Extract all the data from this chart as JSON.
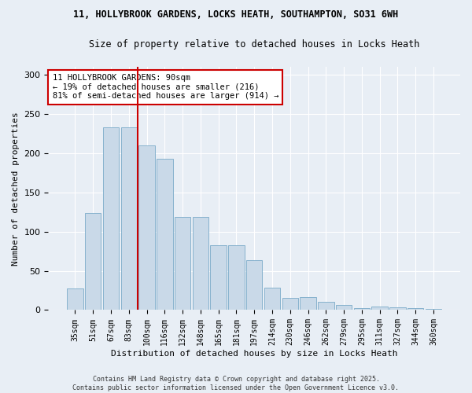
{
  "title1": "11, HOLLYBROOK GARDENS, LOCKS HEATH, SOUTHAMPTON, SO31 6WH",
  "title2": "Size of property relative to detached houses in Locks Heath",
  "xlabel": "Distribution of detached houses by size in Locks Heath",
  "ylabel": "Number of detached properties",
  "bar_labels": [
    "35sqm",
    "51sqm",
    "67sqm",
    "83sqm",
    "100sqm",
    "116sqm",
    "132sqm",
    "148sqm",
    "165sqm",
    "181sqm",
    "197sqm",
    "214sqm",
    "230sqm",
    "246sqm",
    "262sqm",
    "279sqm",
    "295sqm",
    "311sqm",
    "327sqm",
    "344sqm",
    "360sqm"
  ],
  "bar_values": [
    28,
    124,
    233,
    233,
    210,
    193,
    119,
    119,
    83,
    83,
    64,
    29,
    15,
    17,
    10,
    6,
    2,
    4,
    3,
    2,
    1
  ],
  "bar_color": "#c9d9e8",
  "bar_edge_color": "#7aaac8",
  "vline_x_index": 3,
  "vline_color": "#cc0000",
  "annotation_text": "11 HOLLYBROOK GARDENS: 90sqm\n← 19% of detached houses are smaller (216)\n81% of semi-detached houses are larger (914) →",
  "annotation_box_facecolor": "#ffffff",
  "annotation_box_edgecolor": "#cc0000",
  "bg_color": "#e8eef5",
  "plot_bg_color": "#e8eef5",
  "grid_color": "#ffffff",
  "footer1": "Contains HM Land Registry data © Crown copyright and database right 2025.",
  "footer2": "Contains public sector information licensed under the Open Government Licence v3.0.",
  "ylim": [
    0,
    310
  ],
  "yticks": [
    0,
    50,
    100,
    150,
    200,
    250,
    300
  ]
}
